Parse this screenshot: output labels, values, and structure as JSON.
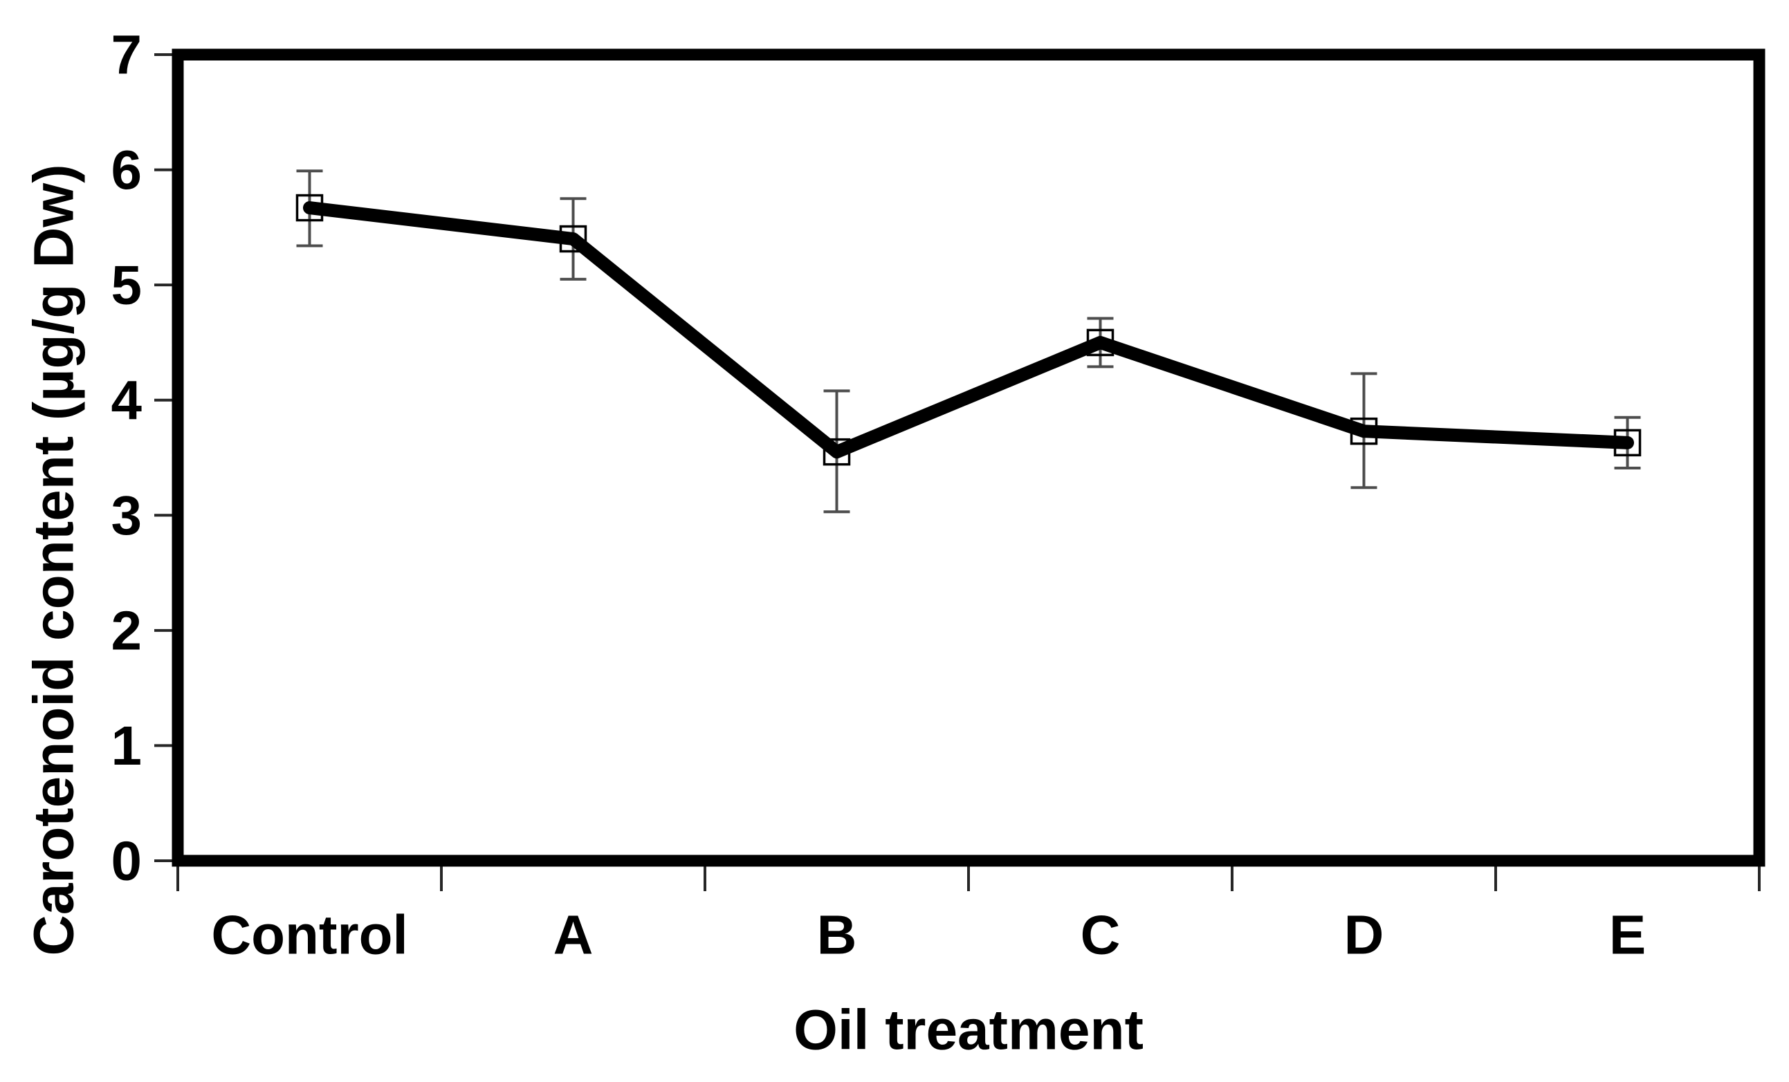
{
  "chart_data": {
    "type": "line",
    "title": "",
    "xlabel": "Oil treatment",
    "ylabel": "Carotenoid content (µg/g Dw)",
    "categories": [
      "Control",
      "A",
      "B",
      "C",
      "D",
      "E"
    ],
    "series": [
      {
        "name": "Carotenoid content",
        "values": [
          5.67,
          5.4,
          3.55,
          4.5,
          3.73,
          3.63
        ],
        "error_low": [
          5.34,
          5.05,
          3.03,
          4.29,
          3.24,
          3.41
        ],
        "error_high": [
          5.99,
          5.75,
          4.08,
          4.71,
          4.23,
          3.85
        ]
      }
    ],
    "ylim": [
      0,
      7
    ],
    "yticks": [
      0,
      1,
      2,
      3,
      4,
      5,
      6,
      7
    ],
    "grid": false,
    "legend_position": "none",
    "marker": "open-square",
    "colors": {
      "line": "#000000",
      "marker_stroke": "#000000",
      "error_bar": "#4d4d4d",
      "frame": "#000000",
      "tick": "#262626",
      "text": "#000000",
      "background": "#ffffff"
    }
  }
}
